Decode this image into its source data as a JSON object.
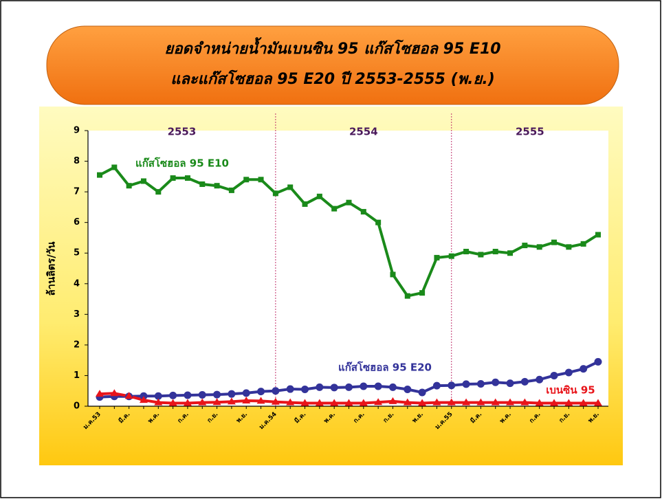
{
  "chart_data": {
    "type": "line",
    "title": [
      "ยอดจำหน่ายน้ำมันเบนซิน 95 แก๊สโซฮอล 95 E10",
      "และแก๊สโซฮอล 95 E20  ปี 2553-2555 (พ.ย.)"
    ],
    "y_label": "ล้านลิตร/วัน",
    "year_labels": [
      "2553",
      "2554",
      "2555"
    ],
    "categories": [
      "ม.ค.53",
      null,
      "มี.ค.",
      null,
      "พ.ค.",
      null,
      "ก.ค.",
      null,
      "ก.ย.",
      null,
      "พ.ย.",
      null,
      "ม.ค.54",
      null,
      "มี.ค.",
      null,
      "พ.ค.",
      null,
      "ก.ค.",
      null,
      "ก.ย.",
      null,
      "พ.ย.",
      null,
      "ม.ค.55",
      null,
      "มี.ค.",
      null,
      "พ.ค.",
      null,
      "ก.ค.",
      null,
      "ก.ย.",
      null,
      "พ.ย."
    ],
    "series": [
      {
        "name": "แก๊สโซฮอล 95 E10",
        "color": "#1a8a1a",
        "marker": "square",
        "values": [
          7.55,
          7.8,
          7.2,
          7.35,
          7.0,
          7.45,
          7.45,
          7.25,
          7.2,
          7.05,
          7.4,
          7.4,
          6.95,
          7.15,
          6.6,
          6.85,
          6.45,
          6.65,
          6.35,
          6.0,
          4.3,
          3.6,
          3.7,
          4.85,
          4.9,
          5.05,
          4.95,
          5.05,
          5.0,
          5.25,
          5.2,
          5.35,
          5.2,
          5.3,
          5.6
        ]
      },
      {
        "name": "แก๊สโซฮอล 95 E20",
        "color": "#33339a",
        "marker": "circle",
        "values": [
          0.3,
          0.32,
          0.32,
          0.33,
          0.33,
          0.35,
          0.36,
          0.37,
          0.38,
          0.4,
          0.43,
          0.48,
          0.5,
          0.56,
          0.55,
          0.62,
          0.61,
          0.62,
          0.65,
          0.65,
          0.62,
          0.55,
          0.45,
          0.67,
          0.68,
          0.72,
          0.73,
          0.78,
          0.75,
          0.8,
          0.87,
          1.0,
          1.1,
          1.22,
          1.45
        ]
      },
      {
        "name": "เบนซิน 95",
        "color": "#e8141a",
        "marker": "triangle",
        "values": [
          0.4,
          0.42,
          0.33,
          0.2,
          0.12,
          0.1,
          0.1,
          0.12,
          0.13,
          0.15,
          0.18,
          0.17,
          0.14,
          0.12,
          0.1,
          0.1,
          0.1,
          0.1,
          0.1,
          0.13,
          0.16,
          0.12,
          0.1,
          0.12,
          0.12,
          0.12,
          0.12,
          0.12,
          0.12,
          0.12,
          0.1,
          0.1,
          0.1,
          0.1,
          0.1
        ]
      }
    ],
    "ylim": [
      0,
      9
    ],
    "yticks": [
      0,
      1,
      2,
      3,
      4,
      5,
      6,
      7,
      8,
      9
    ],
    "grid": false
  }
}
